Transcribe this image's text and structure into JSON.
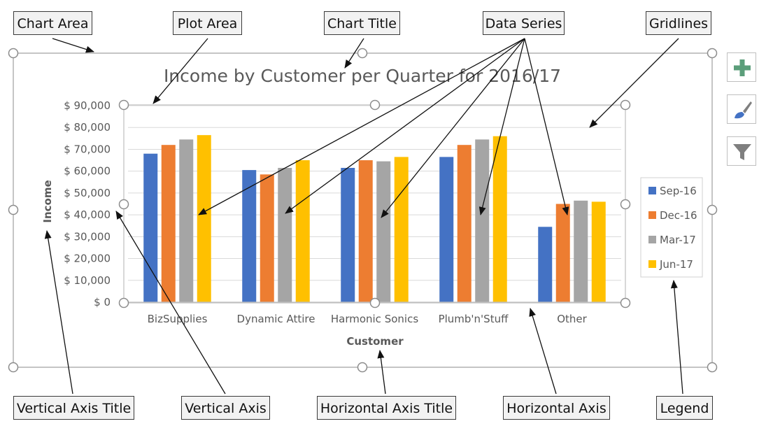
{
  "chart_data": {
    "type": "bar",
    "title": "Income by Customer per Quarter for 2016/17",
    "xlabel": "Customer",
    "ylabel": "Income",
    "categories": [
      "BizSupplies",
      "Dynamic Attire",
      "Harmonic Sonics",
      "Plumb'n'Stuff",
      "Other"
    ],
    "series": [
      {
        "name": "Sep-16",
        "color": "#4472C4",
        "values": [
          68000,
          60500,
          61500,
          66500,
          34500
        ]
      },
      {
        "name": "Dec-16",
        "color": "#ED7D31",
        "values": [
          72000,
          58500,
          65000,
          72000,
          45000
        ]
      },
      {
        "name": "Mar-17",
        "color": "#A5A5A5",
        "values": [
          74500,
          61500,
          64500,
          74500,
          46500
        ]
      },
      {
        "name": "Jun-17",
        "color": "#FFC000",
        "values": [
          76500,
          65000,
          66500,
          76000,
          46000
        ]
      }
    ],
    "yticks": [
      "$ 0",
      "$ 10,000",
      "$ 20,000",
      "$ 30,000",
      "$ 40,000",
      "$ 50,000",
      "$ 60,000",
      "$ 70,000",
      "$ 80,000",
      "$ 90,000"
    ],
    "ylim": [
      0,
      90000
    ],
    "grid": true,
    "legend_position": "right"
  },
  "callouts": {
    "chart_area": "Chart Area",
    "plot_area": "Plot Area",
    "chart_title": "Chart Title",
    "data_series": "Data Series",
    "gridlines": "Gridlines",
    "vertical_axis_title": "Vertical Axis Title",
    "vertical_axis": "Vertical Axis",
    "horizontal_axis_title": "Horizontal Axis Title",
    "horizontal_axis": "Horizontal Axis",
    "legend": "Legend"
  },
  "side_buttons": {
    "elements_icon": "plus-icon",
    "styles_icon": "paintbrush-icon",
    "filters_icon": "funnel-icon"
  },
  "colors": {
    "plus": "#5B9E7A",
    "arrow": "#111111",
    "handle": "#8c8c8c"
  }
}
